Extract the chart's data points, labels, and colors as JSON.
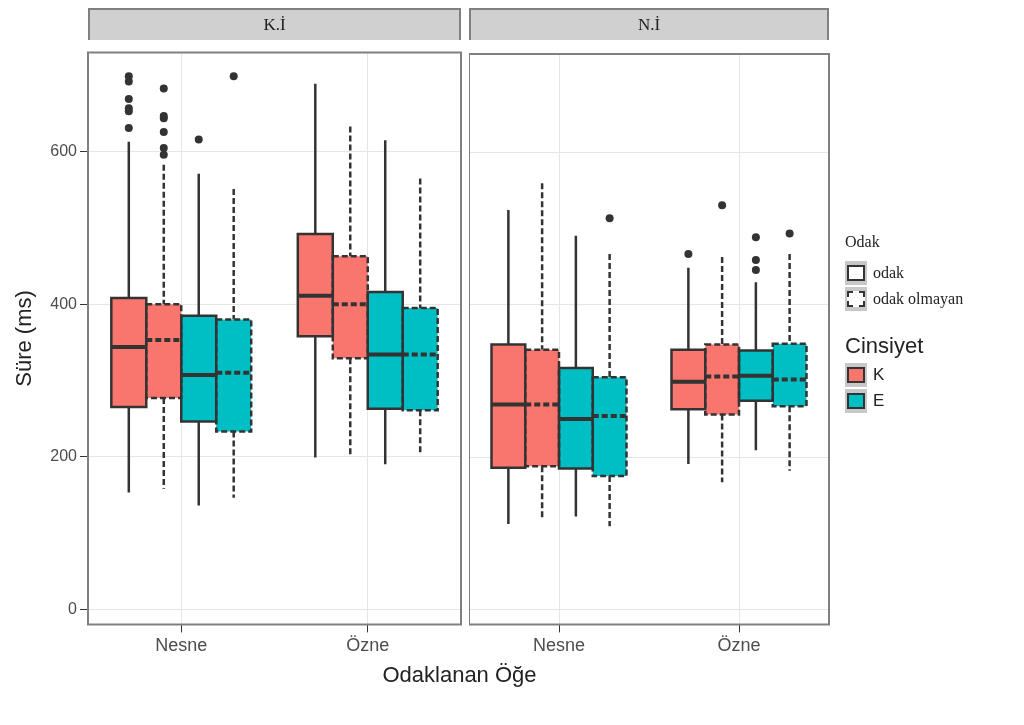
{
  "chart_data": [
    {
      "type": "box",
      "title": "K.İ",
      "xlabel": "Odaklanan Öğe",
      "ylabel": "Süre (ms)",
      "categories": [
        "Nesne",
        "Özne"
      ],
      "ylim": [
        -20,
        730
      ],
      "yticks": [
        0,
        200,
        400,
        600
      ],
      "grid": true,
      "legend": "right",
      "legend_title": "Cinsiyet",
      "annotations": [
        "Odak",
        "odak",
        "odak olmayan"
      ],
      "series": [
        {
          "name": "K",
          "color": "#f8766d",
          "line_style": "solid",
          "boxes": [
            {
              "low": 153,
              "q1": 265,
              "median": 344,
              "q3": 408,
              "high": 613,
              "outliers": [
                699,
                692,
                669,
                657,
                653,
                631
              ]
            },
            {
              "low": 199,
              "q1": 358,
              "median": 411,
              "q3": 492,
              "high": 689
            }
          ]
        },
        {
          "color": "#f8766d",
          "line_style": "dashed",
          "boxes": [
            {
              "low": 158,
              "q1": 277,
              "median": 353,
              "q3": 400,
              "high": 583,
              "outliers": [
                683,
                647,
                644,
                626,
                605,
                596
              ]
            },
            {
              "low": 200,
              "q1": 329,
              "median": 400,
              "q3": 463,
              "high": 633
            }
          ]
        },
        {
          "name": "E",
          "color": "#00bfc4",
          "line_style": "solid",
          "boxes": [
            {
              "low": 136,
              "q1": 246,
              "median": 307,
              "q3": 385,
              "high": 571,
              "outliers": [
                616
              ]
            },
            {
              "low": 190,
              "q1": 263,
              "median": 334,
              "q3": 416,
              "high": 615
            }
          ]
        },
        {
          "color": "#00bfc4",
          "line_style": "dashed",
          "boxes": [
            {
              "low": 146,
              "q1": 233,
              "median": 310,
              "q3": 380,
              "high": 551,
              "outliers": [
                699
              ]
            },
            {
              "low": 205,
              "q1": 261,
              "median": 334,
              "q3": 395,
              "high": 565
            }
          ]
        }
      ]
    },
    {
      "type": "box",
      "title": "N.İ",
      "categories": [
        "Nesne",
        "Özne"
      ],
      "ylim": [
        -20,
        730
      ],
      "yticks": [
        0,
        200,
        400,
        600
      ],
      "grid": true,
      "tick_labels": "x",
      "series": [
        {
          "color": "#f8766d",
          "line_style": "solid",
          "boxes": [
            {
              "low": 112,
              "q1": 186,
              "median": 269,
              "q3": 348,
              "high": 525
            },
            {
              "low": 191,
              "q1": 263,
              "median": 299,
              "q3": 341,
              "high": 449,
              "outliers": [
                467
              ]
            }
          ]
        },
        {
          "color": "#f8766d",
          "line_style": "dashed",
          "boxes": [
            {
              "low": 121,
              "q1": 188,
              "median": 269,
              "q3": 341,
              "high": 560
            },
            {
              "low": 167,
              "q1": 256,
              "median": 306,
              "q3": 348,
              "high": 463,
              "outliers": [
                531
              ]
            }
          ]
        },
        {
          "color": "#00bfc4",
          "line_style": "solid",
          "boxes": [
            {
              "low": 122,
              "q1": 185,
              "median": 250,
              "q3": 317,
              "high": 491
            },
            {
              "low": 209,
              "q1": 274,
              "median": 307,
              "q3": 340,
              "high": 430,
              "outliers": [
                489,
                459,
                446
              ]
            }
          ]
        },
        {
          "color": "#00bfc4",
          "line_style": "dashed",
          "boxes": [
            {
              "low": 109,
              "q1": 175,
              "median": 254,
              "q3": 305,
              "high": 467,
              "outliers": [
                514
              ]
            },
            {
              "low": 182,
              "q1": 267,
              "median": 302,
              "q3": 349,
              "high": 467,
              "outliers": [
                494
              ]
            }
          ]
        }
      ]
    }
  ]
}
